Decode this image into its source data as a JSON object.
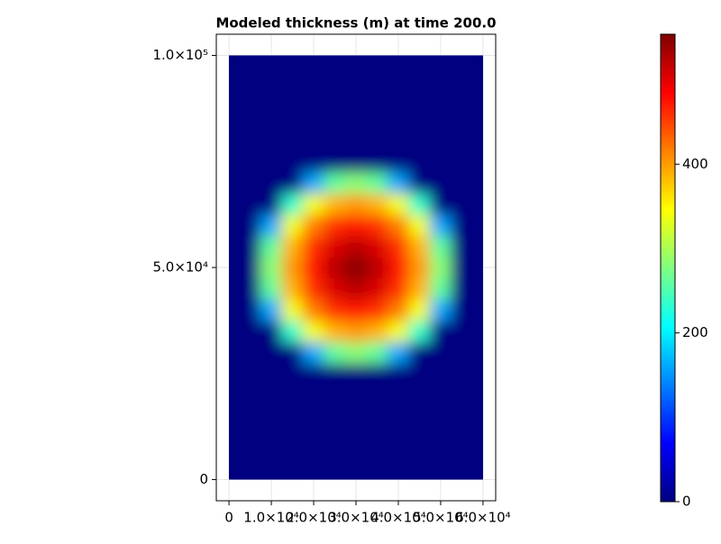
{
  "chart_data": {
    "type": "heatmap",
    "title": "Modeled thickness (m) at time 200.0",
    "colormap": "jet",
    "x": [
      0,
      5000,
      10000,
      15000,
      20000,
      25000,
      30000,
      35000,
      40000,
      45000,
      50000,
      55000,
      60000
    ],
    "y": [
      0,
      5000,
      10000,
      15000,
      20000,
      25000,
      30000,
      35000,
      40000,
      45000,
      50000,
      55000,
      60000,
      65000,
      70000,
      75000,
      80000,
      85000,
      90000,
      95000,
      100000
    ],
    "z": [
      [
        0,
        0,
        0,
        0,
        0,
        0,
        0,
        0,
        0,
        0,
        0,
        0,
        0
      ],
      [
        0,
        0,
        0,
        0,
        0,
        0,
        0,
        0,
        0,
        0,
        0,
        0,
        0
      ],
      [
        0,
        0,
        0,
        0,
        0,
        0,
        0,
        0,
        0,
        0,
        0,
        0,
        0
      ],
      [
        0,
        0,
        0,
        0,
        0,
        0,
        0,
        0,
        0,
        0,
        0,
        0,
        0
      ],
      [
        0,
        0,
        0,
        0,
        0,
        0,
        0,
        0,
        0,
        0,
        0,
        0,
        0
      ],
      [
        0,
        0,
        0,
        0,
        0,
        0,
        0,
        0,
        0,
        0,
        0,
        0,
        0
      ],
      [
        0,
        0,
        0,
        0,
        160,
        260,
        283,
        260,
        160,
        0,
        0,
        0,
        0
      ],
      [
        0,
        0,
        0,
        234,
        340,
        388,
        402,
        388,
        340,
        234,
        0,
        0,
        0
      ],
      [
        0,
        0,
        160,
        340,
        417,
        459,
        473,
        459,
        417,
        340,
        160,
        0,
        0
      ],
      [
        0,
        0,
        260,
        388,
        459,
        504,
        522,
        504,
        459,
        388,
        260,
        0,
        0
      ],
      [
        0,
        0,
        283,
        402,
        473,
        522,
        550,
        522,
        473,
        402,
        283,
        0,
        0
      ],
      [
        0,
        0,
        260,
        388,
        459,
        504,
        522,
        504,
        459,
        388,
        260,
        0,
        0
      ],
      [
        0,
        0,
        160,
        340,
        417,
        459,
        473,
        459,
        417,
        340,
        160,
        0,
        0
      ],
      [
        0,
        0,
        0,
        234,
        340,
        388,
        402,
        388,
        340,
        234,
        0,
        0,
        0
      ],
      [
        0,
        0,
        0,
        0,
        160,
        260,
        283,
        260,
        160,
        0,
        0,
        0,
        0
      ],
      [
        0,
        0,
        0,
        0,
        0,
        0,
        0,
        0,
        0,
        0,
        0,
        0,
        0
      ],
      [
        0,
        0,
        0,
        0,
        0,
        0,
        0,
        0,
        0,
        0,
        0,
        0,
        0
      ],
      [
        0,
        0,
        0,
        0,
        0,
        0,
        0,
        0,
        0,
        0,
        0,
        0,
        0
      ],
      [
        0,
        0,
        0,
        0,
        0,
        0,
        0,
        0,
        0,
        0,
        0,
        0,
        0
      ],
      [
        0,
        0,
        0,
        0,
        0,
        0,
        0,
        0,
        0,
        0,
        0,
        0,
        0
      ],
      [
        0,
        0,
        0,
        0,
        0,
        0,
        0,
        0,
        0,
        0,
        0,
        0,
        0
      ]
    ],
    "xlim": [
      -3000,
      63000
    ],
    "ylim": [
      -5000,
      105000
    ],
    "xticks": [
      0,
      {
        "value": 10000,
        "label": "1.0×10⁴"
      },
      {
        "value": 20000,
        "label": "2.0×10⁴"
      },
      {
        "value": 30000,
        "label": "3.0×10⁴"
      },
      {
        "value": 40000,
        "label": "4.0×10⁴"
      },
      {
        "value": 50000,
        "label": "5.0×10⁴"
      },
      {
        "value": 60000,
        "label": "6.0×10⁴"
      }
    ],
    "yticks": [
      0,
      {
        "value": 50000,
        "label": "5.0×10⁴"
      },
      {
        "value": 100000,
        "label": "1.0×10⁵"
      }
    ],
    "grid": true,
    "colorbar": {
      "clim": [
        0,
        554
      ],
      "ticks": [
        0,
        200,
        400
      ]
    }
  }
}
